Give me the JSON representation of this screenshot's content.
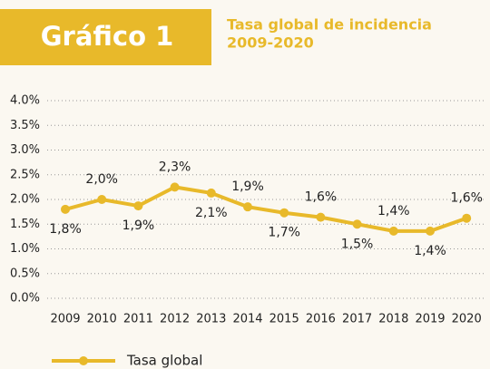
{
  "chart_data": {
    "type": "line",
    "header": "Gráfico 1",
    "title": "Tasa global de incidencia",
    "subtitle": "2009-2020",
    "categories": [
      "2009",
      "2010",
      "2011",
      "2012",
      "2013",
      "2014",
      "2015",
      "2016",
      "2017",
      "2018",
      "2019",
      "2020"
    ],
    "series": [
      {
        "name": "Tasa global",
        "color": "#e8b92a",
        "values": [
          1.8,
          2.0,
          1.87,
          2.25,
          2.13,
          1.85,
          1.73,
          1.64,
          1.5,
          1.36,
          1.36,
          1.62
        ],
        "value_labels": [
          "1,8%",
          "2,0%",
          "1,9%",
          "2,3%",
          "2,1%",
          "1,9%",
          "1,7%",
          "1,6%",
          "1,5%",
          "1,4%",
          "1,4%",
          "1,6%"
        ]
      }
    ],
    "ylim": [
      0,
      4.0
    ],
    "yticks": [
      {
        "value": 0,
        "label": "0.0%"
      },
      {
        "value": 0.5,
        "label": "0.5%"
      },
      {
        "value": 1.0,
        "label": "1.0%"
      },
      {
        "value": 1.5,
        "label": "1.5%"
      },
      {
        "value": 2.0,
        "label": "2.0%"
      },
      {
        "value": 2.5,
        "label": "2.5%"
      },
      {
        "value": 3.0,
        "label": "3.0%"
      },
      {
        "value": 3.5,
        "label": "3.5%"
      },
      {
        "value": 4.0,
        "label": "4.0%"
      }
    ],
    "grid": true,
    "legend": "bottom-left"
  }
}
